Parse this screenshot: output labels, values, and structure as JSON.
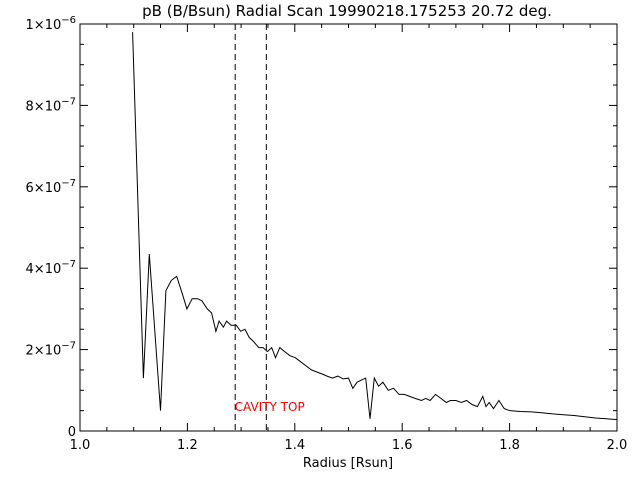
{
  "chart_data": {
    "type": "line",
    "title": "pB (B/Bsun) Radial Scan 19990218.175253 20.72 deg.",
    "xlabel": "Radius [Rsun]",
    "ylabel": "",
    "xlim": [
      1.0,
      2.0
    ],
    "ylim": [
      0,
      1e-06
    ],
    "x_ticks": [
      {
        "value": 1.0,
        "label": "1.0"
      },
      {
        "value": 1.2,
        "label": "1.2"
      },
      {
        "value": 1.4,
        "label": "1.4"
      },
      {
        "value": 1.6,
        "label": "1.6"
      },
      {
        "value": 1.8,
        "label": "1.8"
      },
      {
        "value": 2.0,
        "label": "2.0"
      }
    ],
    "y_ticks": [
      {
        "value": 0,
        "mant": "0",
        "exp": ""
      },
      {
        "value": 2e-07,
        "mant": "2×10",
        "exp": "−7"
      },
      {
        "value": 4e-07,
        "mant": "4×10",
        "exp": "−7"
      },
      {
        "value": 6e-07,
        "mant": "6×10",
        "exp": "−7"
      },
      {
        "value": 8e-07,
        "mant": "8×10",
        "exp": "−7"
      },
      {
        "value": 1e-06,
        "mant": "1×10",
        "exp": "−6"
      }
    ],
    "grid": false,
    "legend": "none",
    "series": [
      {
        "color": "#000000",
        "x": [
          1.098,
          1.118,
          1.129,
          1.15,
          1.16,
          1.17,
          1.18,
          1.191,
          1.199,
          1.209,
          1.219,
          1.227,
          1.237,
          1.245,
          1.253,
          1.259,
          1.267,
          1.273,
          1.281,
          1.291,
          1.299,
          1.307,
          1.315,
          1.323,
          1.333,
          1.341,
          1.349,
          1.357,
          1.364,
          1.372,
          1.381,
          1.391,
          1.401,
          1.411,
          1.421,
          1.431,
          1.441,
          1.451,
          1.46,
          1.47,
          1.48,
          1.49,
          1.5,
          1.508,
          1.516,
          1.524,
          1.532,
          1.54,
          1.548,
          1.556,
          1.564,
          1.574,
          1.584,
          1.594,
          1.604,
          1.614,
          1.624,
          1.636,
          1.644,
          1.652,
          1.662,
          1.672,
          1.682,
          1.69,
          1.7,
          1.71,
          1.72,
          1.73,
          1.74,
          1.75,
          1.756,
          1.762,
          1.77,
          1.78,
          1.79,
          1.8,
          1.82,
          1.84,
          1.86,
          1.88,
          1.9,
          1.92,
          1.94,
          1.96,
          1.98,
          2.0
        ],
        "values": [
          9.8e-07,
          1.3e-07,
          4.35e-07,
          5e-08,
          3.45e-07,
          3.7e-07,
          3.8e-07,
          3.35e-07,
          3e-07,
          3.25e-07,
          3.25e-07,
          3.2e-07,
          3e-07,
          2.9e-07,
          2.45e-07,
          2.7e-07,
          2.55e-07,
          2.7e-07,
          2.6e-07,
          2.6e-07,
          2.45e-07,
          2.5e-07,
          2.3e-07,
          2.2e-07,
          2.05e-07,
          2.05e-07,
          1.95e-07,
          2.05e-07,
          1.8e-07,
          2.05e-07,
          1.95e-07,
          1.85e-07,
          1.8e-07,
          1.7e-07,
          1.6e-07,
          1.5e-07,
          1.45e-07,
          1.4e-07,
          1.35e-07,
          1.3e-07,
          1.35e-07,
          1.28e-07,
          1.3e-07,
          1.05e-07,
          1.2e-07,
          1.25e-07,
          1.3e-07,
          3e-08,
          1.3e-07,
          1.1e-07,
          1.2e-07,
          1e-07,
          1.05e-07,
          9e-08,
          9e-08,
          8.5e-08,
          8e-08,
          7.5e-08,
          8e-08,
          7.5e-08,
          9e-08,
          8e-08,
          7e-08,
          7.5e-08,
          7.5e-08,
          7e-08,
          7.5e-08,
          6.5e-08,
          6e-08,
          8.5e-08,
          6e-08,
          7e-08,
          5.5e-08,
          7.5e-08,
          5.5e-08,
          5e-08,
          4.8e-08,
          4.7e-08,
          4.5e-08,
          4.2e-08,
          4e-08,
          3.8e-08,
          3.5e-08,
          3.2e-08,
          3e-08,
          2.8e-08
        ]
      }
    ],
    "vlines": [
      1.289,
      1.347
    ],
    "annotations": [
      {
        "text": "CAVITY TOP",
        "x": 1.288,
        "y": 3e-08,
        "color": "#ff0000"
      }
    ]
  }
}
